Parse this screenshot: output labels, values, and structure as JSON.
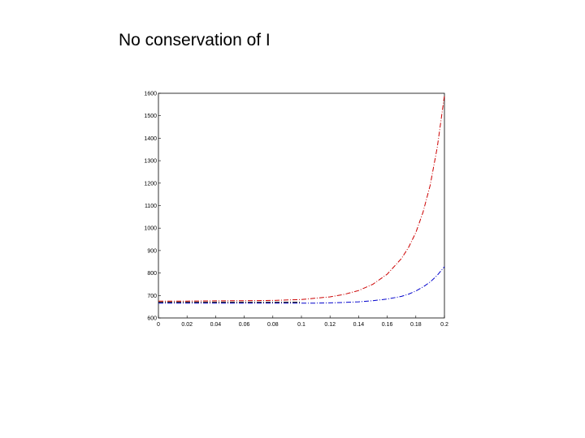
{
  "slide": {
    "title": "No conservation of I"
  },
  "chart_data": {
    "type": "line",
    "title": "",
    "xlabel": "",
    "ylabel": "",
    "xlim": [
      0,
      0.2
    ],
    "ylim": [
      600,
      1600
    ],
    "x_ticks": [
      0,
      0.02,
      0.04,
      0.06,
      0.08,
      0.1,
      0.12,
      0.14,
      0.16,
      0.18,
      0.2
    ],
    "x_tick_labels": [
      "0",
      "0.02",
      "0.04",
      "0.06",
      "0.08",
      "0.1",
      "0.12",
      "0.14",
      "0.16",
      "0.18",
      "0.2"
    ],
    "y_ticks": [
      600,
      700,
      800,
      900,
      1000,
      1100,
      1200,
      1300,
      1400,
      1500,
      1600
    ],
    "y_tick_labels": [
      "600",
      "700",
      "800",
      "900",
      "1000",
      "1100",
      "1200",
      "1300",
      "1400",
      "1500",
      "1600"
    ],
    "grid": false,
    "legend": false,
    "series": [
      {
        "color": "#cc0000",
        "x": [
          0,
          0.02,
          0.04,
          0.06,
          0.08,
          0.1,
          0.11,
          0.12,
          0.13,
          0.14,
          0.15,
          0.16,
          0.17,
          0.175,
          0.18,
          0.185,
          0.19,
          0.195,
          0.2
        ],
        "y": [
          675,
          675,
          676,
          677,
          678,
          682,
          688,
          694,
          705,
          722,
          750,
          795,
          865,
          915,
          980,
          1070,
          1190,
          1360,
          1590
        ]
      },
      {
        "color": "#0000cc",
        "x": [
          0,
          0.02,
          0.04,
          0.06,
          0.08,
          0.1,
          0.11,
          0.12,
          0.13,
          0.14,
          0.15,
          0.16,
          0.17,
          0.175,
          0.18,
          0.185,
          0.19,
          0.195,
          0.2
        ],
        "y": [
          666,
          666,
          666,
          666,
          666,
          666,
          666,
          667,
          669,
          672,
          677,
          684,
          696,
          706,
          720,
          738,
          760,
          790,
          828
        ]
      },
      {
        "color": "#000000",
        "x": [
          0,
          0.02,
          0.04,
          0.06,
          0.08,
          0.1
        ],
        "y": [
          670,
          670,
          670,
          670,
          670,
          670
        ]
      }
    ]
  }
}
